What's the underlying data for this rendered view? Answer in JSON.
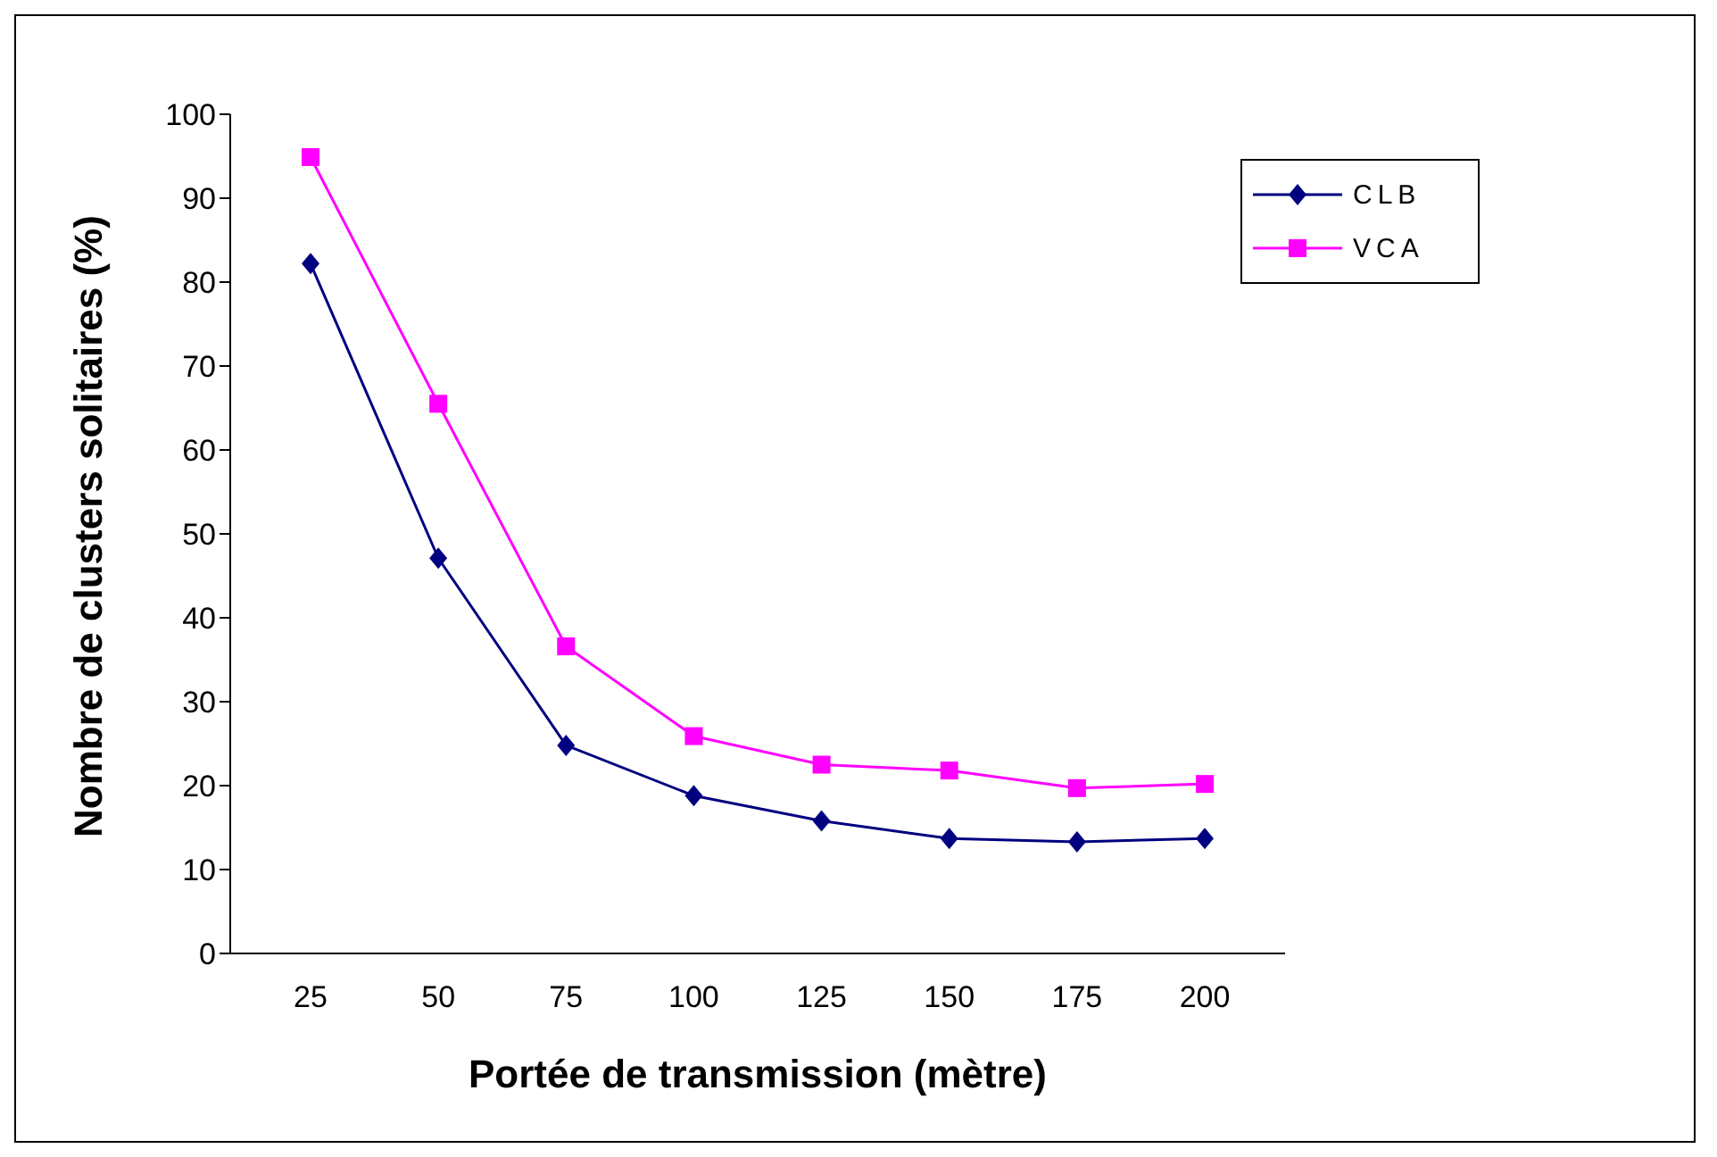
{
  "chart_data": {
    "type": "line",
    "xlabel": "Portée de transmission (mètre)",
    "ylabel": "Nombre de clusters solitaires (%)",
    "categories": [
      "25",
      "50",
      "75",
      "100",
      "125",
      "150",
      "175",
      "200"
    ],
    "series": [
      {
        "name": "CLB",
        "color": "#000080",
        "marker": "diamond",
        "values": [
          82.2,
          47.1,
          24.8,
          18.8,
          15.8,
          13.7,
          13.3,
          13.7
        ]
      },
      {
        "name": "VCA",
        "color": "#ff00ff",
        "marker": "square",
        "values": [
          94.9,
          65.5,
          36.6,
          25.9,
          22.5,
          21.8,
          19.7,
          20.2
        ]
      }
    ],
    "ylim": [
      0,
      100
    ],
    "yticks": [
      0,
      10,
      20,
      30,
      40,
      50,
      60,
      70,
      80,
      90,
      100
    ],
    "grid": false,
    "legend": "top right",
    "line_style": "solid"
  }
}
